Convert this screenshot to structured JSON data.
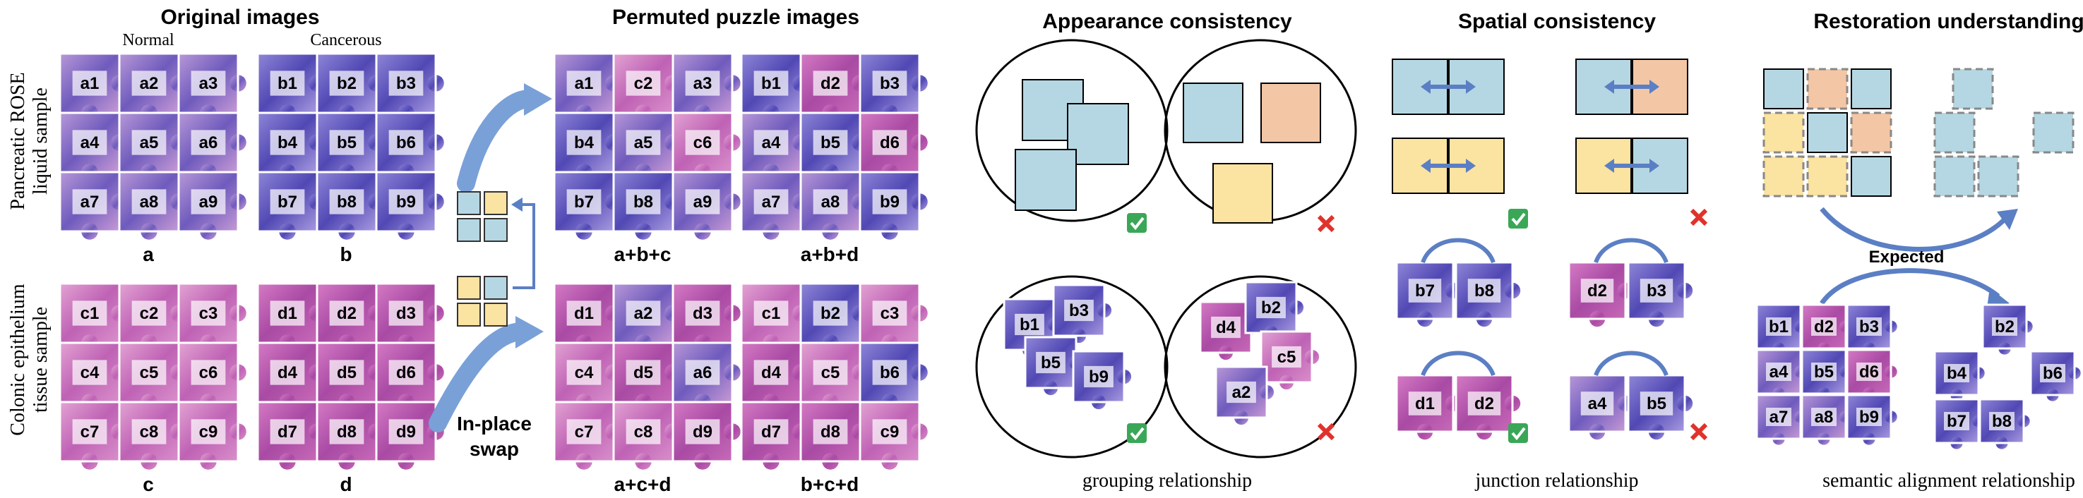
{
  "headers": {
    "original": "Original images",
    "permuted": "Permuted puzzle images",
    "appearance": "Appearance consistency",
    "spatial": "Spatial consistency",
    "restoration": "Restoration understanding"
  },
  "subheaders": {
    "normal": "Normal",
    "cancerous": "Cancerous"
  },
  "side_labels": {
    "row1_line1": "Pancreatic ROSE",
    "row1_line2": "liquid sample",
    "row2_line1": "Colonic epithelium",
    "row2_line2": "tissue sample"
  },
  "original_captions": {
    "a": "a",
    "b": "b",
    "c": "c",
    "d": "d"
  },
  "swap_label": {
    "line1": "In-place",
    "line2": "swap"
  },
  "permuted_captions": {
    "p1": "a+b+c",
    "p2": "a+b+d",
    "p3": "a+c+d",
    "p4": "b+c+d"
  },
  "grids": {
    "a": [
      "a1",
      "a2",
      "a3",
      "a4",
      "a5",
      "a6",
      "a7",
      "a8",
      "a9"
    ],
    "b": [
      "b1",
      "b2",
      "b3",
      "b4",
      "b5",
      "b6",
      "b7",
      "b8",
      "b9"
    ],
    "c": [
      "c1",
      "c2",
      "c3",
      "c4",
      "c5",
      "c6",
      "c7",
      "c8",
      "c9"
    ],
    "d": [
      "d1",
      "d2",
      "d3",
      "d4",
      "d5",
      "d6",
      "d7",
      "d8",
      "d9"
    ],
    "p1": [
      "a1",
      "c2",
      "a3",
      "b4",
      "a5",
      "c6",
      "b7",
      "b8",
      "a9"
    ],
    "p2": [
      "b1",
      "d2",
      "b3",
      "a4",
      "b5",
      "d6",
      "a7",
      "a8",
      "b9"
    ],
    "p3": [
      "d1",
      "a2",
      "d3",
      "c4",
      "d5",
      "a6",
      "c7",
      "c8",
      "d9"
    ],
    "p4": [
      "c1",
      "b2",
      "c3",
      "d4",
      "c5",
      "b6",
      "d7",
      "d8",
      "c9"
    ]
  },
  "appearance_pieces": {
    "good": [
      "b1",
      "b3",
      "b5",
      "b9"
    ],
    "bad": [
      "d4",
      "b2",
      "c5",
      "a2"
    ]
  },
  "spatial_pairs": {
    "good1": [
      "b7",
      "b8"
    ],
    "bad1": [
      "d2",
      "b3"
    ],
    "good2": [
      "d1",
      "d2"
    ],
    "bad2": [
      "a4",
      "b5"
    ]
  },
  "restoration": {
    "expected": "Expected",
    "full_grid": [
      "b1",
      "d2",
      "b3",
      "a4",
      "b5",
      "d6",
      "a7",
      "a8",
      "b9"
    ],
    "extracted": [
      "b2",
      "b4",
      "b6",
      "b7",
      "b8"
    ]
  },
  "bottom_labels": {
    "grouping": "grouping relationship",
    "junction": "junction relationship",
    "semantic": "semantic alignment relationship"
  },
  "colors": {
    "blue": "#b5d7e3",
    "orange": "#f3c6a5",
    "yellow": "#fbe3a1",
    "arrow": "#5b7fc4",
    "check": "#3aa757",
    "cross": "#e0322b",
    "purple_dark": "#5a4aa8",
    "pink": "#c86ab8"
  }
}
